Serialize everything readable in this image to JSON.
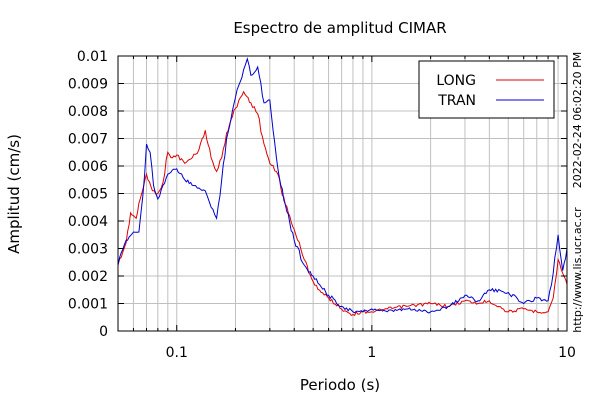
{
  "chart_data": {
    "type": "line",
    "title": "Espectro de amplitud CIMAR",
    "xlabel": "Periodo (s)",
    "ylabel": "Amplitud (cm/s)",
    "x_scale": "log",
    "xlim": [
      0.05,
      10
    ],
    "ylim": [
      0,
      0.01
    ],
    "grid": true,
    "legend": "top-right",
    "x_ticks": [
      0.1,
      1,
      10
    ],
    "x_tick_labels": [
      "0.1",
      "1",
      "10"
    ],
    "y_ticks": [
      0,
      0.001,
      0.002,
      0.003,
      0.004,
      0.005,
      0.006,
      0.007,
      0.008,
      0.009,
      0.01
    ],
    "y_tick_labels": [
      "0",
      "0.001",
      "0.002",
      "0.003",
      "0.004",
      "0.005",
      "0.006",
      "0.007",
      "0.008",
      "0.009",
      "0.01"
    ],
    "annotations": {
      "timestamp": "2022-02-24 06:02:20 PM",
      "url": "http://www.lis.ucr.ac.cr"
    },
    "series": [
      {
        "name": "LONG",
        "color": "#e00000",
        "x": [
          0.05,
          0.055,
          0.058,
          0.062,
          0.065,
          0.07,
          0.075,
          0.08,
          0.085,
          0.09,
          0.095,
          0.1,
          0.11,
          0.12,
          0.13,
          0.14,
          0.15,
          0.16,
          0.17,
          0.18,
          0.2,
          0.22,
          0.24,
          0.26,
          0.28,
          0.3,
          0.33,
          0.36,
          0.4,
          0.45,
          0.5,
          0.55,
          0.6,
          0.7,
          0.8,
          0.9,
          1.0,
          1.2,
          1.5,
          2.0,
          2.5,
          3.0,
          3.5,
          4.0,
          5.0,
          6.0,
          7.0,
          8.0,
          8.5,
          9.0,
          9.5,
          10.0
        ],
        "y": [
          0.0024,
          0.0032,
          0.0043,
          0.0041,
          0.0048,
          0.0057,
          0.0051,
          0.005,
          0.0054,
          0.0065,
          0.0063,
          0.0064,
          0.0061,
          0.0063,
          0.0066,
          0.0073,
          0.0063,
          0.0058,
          0.0063,
          0.0072,
          0.0081,
          0.0087,
          0.0083,
          0.0079,
          0.0068,
          0.0061,
          0.0057,
          0.0046,
          0.0037,
          0.0026,
          0.0018,
          0.0014,
          0.0012,
          0.0008,
          0.0006,
          0.0007,
          0.0007,
          0.0008,
          0.0009,
          0.001,
          0.0009,
          0.0011,
          0.001,
          0.0011,
          0.0007,
          0.0008,
          0.0007,
          0.0007,
          0.0012,
          0.0026,
          0.0021,
          0.0017
        ]
      },
      {
        "name": "TRAN",
        "color": "#0000d0",
        "x": [
          0.05,
          0.055,
          0.06,
          0.064,
          0.067,
          0.07,
          0.073,
          0.076,
          0.08,
          0.085,
          0.09,
          0.1,
          0.11,
          0.12,
          0.13,
          0.14,
          0.15,
          0.16,
          0.17,
          0.18,
          0.2,
          0.22,
          0.23,
          0.24,
          0.26,
          0.28,
          0.3,
          0.33,
          0.36,
          0.4,
          0.45,
          0.5,
          0.55,
          0.6,
          0.7,
          0.8,
          0.9,
          1.0,
          1.2,
          1.5,
          2.0,
          2.5,
          3.0,
          3.5,
          4.0,
          5.0,
          6.0,
          7.0,
          8.0,
          8.5,
          9.0,
          9.5,
          10.0
        ],
        "y": [
          0.0024,
          0.0033,
          0.0036,
          0.0036,
          0.0049,
          0.0068,
          0.0065,
          0.0053,
          0.0048,
          0.0053,
          0.0057,
          0.0059,
          0.0055,
          0.0053,
          0.0052,
          0.0051,
          0.0045,
          0.0041,
          0.0055,
          0.007,
          0.0085,
          0.0095,
          0.0099,
          0.0093,
          0.0096,
          0.0083,
          0.0084,
          0.0059,
          0.0046,
          0.0033,
          0.0024,
          0.002,
          0.0016,
          0.0013,
          0.0009,
          0.0007,
          0.0007,
          0.0008,
          0.0007,
          0.0008,
          0.0007,
          0.0009,
          0.0013,
          0.0011,
          0.0015,
          0.0014,
          0.001,
          0.0012,
          0.0011,
          0.0021,
          0.0035,
          0.0022,
          0.003
        ]
      }
    ]
  }
}
